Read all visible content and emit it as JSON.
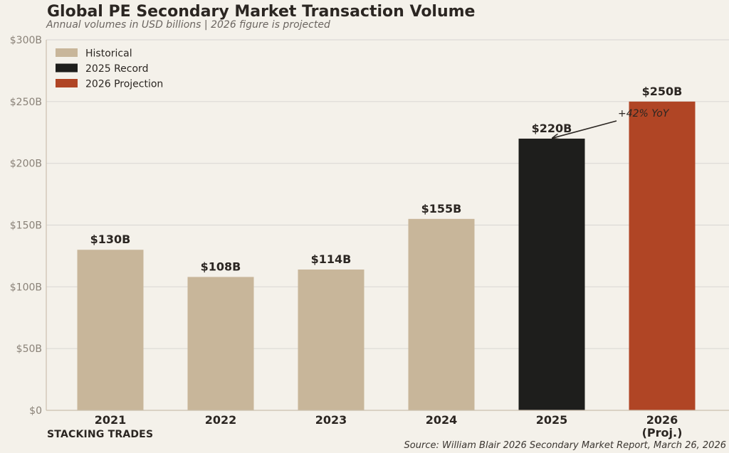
{
  "chart_data": {
    "type": "bar",
    "title": "Global PE Secondary Market Transaction Volume",
    "subtitle": "Annual volumes in USD billions  |  2026 figure is projected",
    "xlabel": "",
    "ylabel": "",
    "categories": [
      "2021",
      "2022",
      "2023",
      "2024",
      "2025",
      "2026"
    ],
    "category_labels": [
      [
        "2021"
      ],
      [
        "2022"
      ],
      [
        "2023"
      ],
      [
        "2024"
      ],
      [
        "2025"
      ],
      [
        "2026",
        "(Proj.)"
      ]
    ],
    "values": [
      130,
      108,
      114,
      155,
      220,
      250
    ],
    "data_labels": [
      "$130B",
      "$108B",
      "$114B",
      "$155B",
      "$220B",
      "$250B"
    ],
    "bar_series": [
      "Historical",
      "Historical",
      "Historical",
      "Historical",
      "2025 Record",
      "2026 Projection"
    ],
    "ylim": [
      0,
      300
    ],
    "yticks": [
      0,
      50,
      100,
      150,
      200,
      250,
      300
    ],
    "ytick_labels": [
      "$0",
      "$50B",
      "$100B",
      "$150B",
      "$200B",
      "$250B",
      "$300B"
    ],
    "grid": true,
    "legend": {
      "placement": "top-left",
      "entries": [
        {
          "label": "Historical",
          "color": "#c8b69a"
        },
        {
          "label": "2025 Record",
          "color": "#1e1e1c"
        },
        {
          "label": "2026 Projection",
          "color": "#b04525"
        }
      ]
    },
    "annotations": [
      {
        "text": "+42% YoY",
        "points_to": "2025",
        "value": 220
      }
    ]
  },
  "footer": {
    "left_label": "STACKING TRADES",
    "source": "Source: William Blair 2026 Secondary Market Report, March 26, 2026"
  },
  "colors": {
    "background": "#f4f1ea",
    "grid": "#dcdad6",
    "axis": "#cbbfae",
    "tick_text": "#8a8278",
    "text_dark": "#2b2622"
  }
}
